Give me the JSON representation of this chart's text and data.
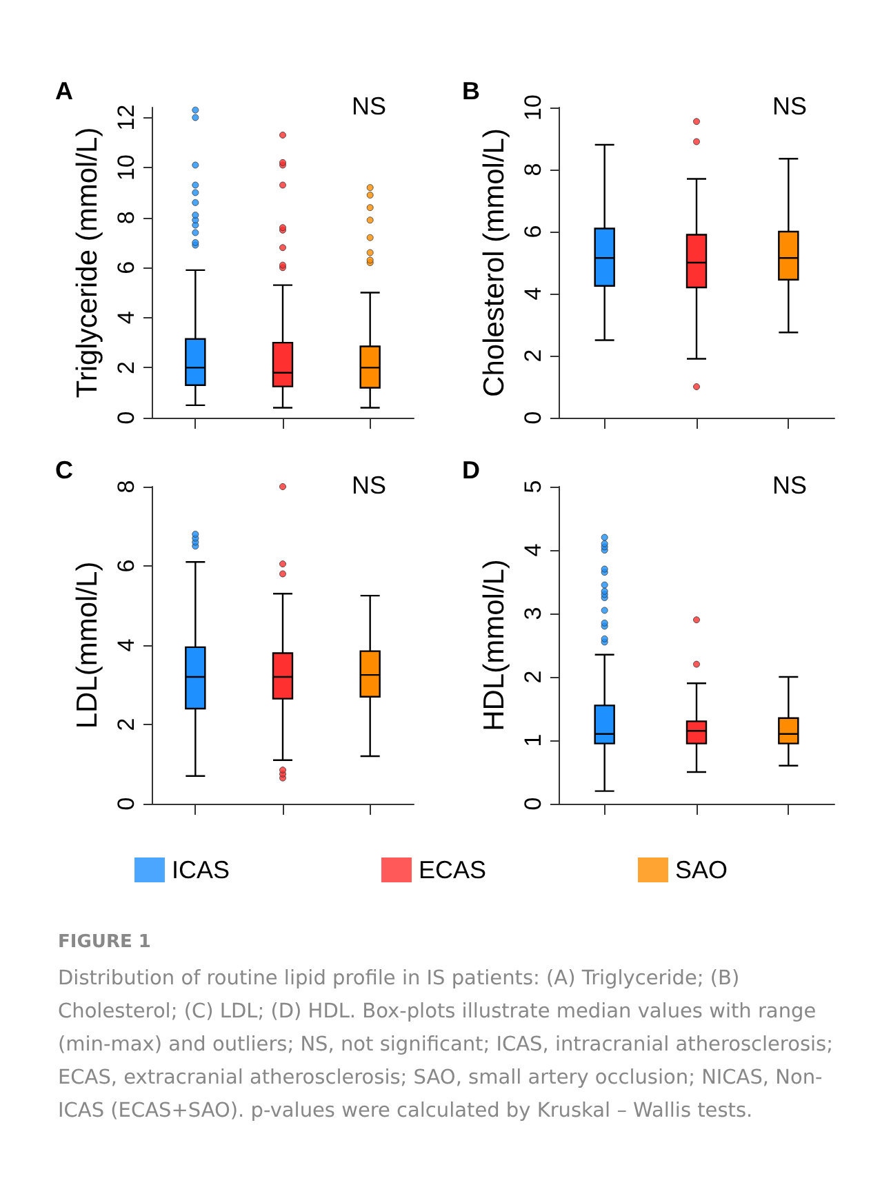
{
  "chart_data": [
    {
      "type": "box",
      "title": "A",
      "ylabel": "Triglyceride (mmol/L)",
      "categories": [
        null,
        null,
        null
      ],
      "ylim": [
        0,
        12.4
      ],
      "yticks": [
        0,
        2,
        4,
        6,
        8,
        10,
        12
      ],
      "tick_labels": "y",
      "annotations": [
        "NS"
      ],
      "series": [
        {
          "color": "#1e90ff",
          "boxes": [
            {
              "low": 0.5,
              "q1": 1.3,
              "median": 2.0,
              "q3": 3.15,
              "high": 5.9,
              "outliers": [
                6.9,
                7.0,
                7.4,
                7.7,
                7.9,
                8.1,
                8.6,
                9.0,
                9.3,
                10.1,
                12.0,
                12.3
              ]
            },
            null,
            null
          ]
        },
        {
          "color": "#ff3030",
          "boxes": [
            null,
            {
              "low": 0.4,
              "q1": 1.25,
              "median": 1.8,
              "q3": 3.0,
              "high": 5.3,
              "outliers": [
                6.0,
                6.1,
                6.8,
                7.5,
                7.6,
                9.3,
                10.1,
                10.2,
                11.3
              ]
            },
            null
          ]
        },
        {
          "color": "#ff8c00",
          "boxes": [
            null,
            null,
            {
              "low": 0.4,
              "q1": 1.2,
              "median": 2.0,
              "q3": 2.85,
              "high": 5.0,
              "outliers": [
                6.2,
                6.3,
                6.6,
                7.2,
                7.9,
                8.4,
                8.9,
                9.2
              ]
            }
          ]
        }
      ]
    },
    {
      "type": "box",
      "title": "B",
      "ylabel": "Cholesterol (mmol/L)",
      "categories": [
        null,
        null,
        null
      ],
      "ylim": [
        0,
        10
      ],
      "yticks": [
        0,
        2,
        4,
        6,
        8,
        10
      ],
      "tick_labels": "y",
      "annotations": [
        "NS"
      ],
      "series": [
        {
          "color": "#1e90ff",
          "boxes": [
            {
              "low": 2.5,
              "q1": 4.25,
              "median": 5.15,
              "q3": 6.1,
              "high": 8.8
            },
            null,
            null
          ]
        },
        {
          "color": "#ff3030",
          "boxes": [
            null,
            {
              "low": 1.9,
              "q1": 4.2,
              "median": 5.0,
              "q3": 5.9,
              "high": 7.7,
              "outliers": [
                1.0,
                8.9,
                9.55
              ]
            },
            null
          ]
        },
        {
          "color": "#ff8c00",
          "boxes": [
            null,
            null,
            {
              "low": 2.75,
              "q1": 4.45,
              "median": 5.15,
              "q3": 6.0,
              "high": 8.35
            }
          ]
        }
      ]
    },
    {
      "type": "box",
      "title": "C",
      "ylabel": "LDL(mmol/L)",
      "categories": [
        null,
        null,
        null
      ],
      "ylim": [
        0,
        8
      ],
      "yticks": [
        0,
        2,
        4,
        6,
        8
      ],
      "tick_labels": "y",
      "annotations": [
        "NS"
      ],
      "series": [
        {
          "color": "#1e90ff",
          "boxes": [
            {
              "low": 0.7,
              "q1": 2.4,
              "median": 3.2,
              "q3": 3.95,
              "high": 6.1,
              "outliers": [
                6.5,
                6.6,
                6.7,
                6.8
              ]
            },
            null,
            null
          ]
        },
        {
          "color": "#ff3030",
          "boxes": [
            null,
            {
              "low": 1.1,
              "q1": 2.65,
              "median": 3.2,
              "q3": 3.8,
              "high": 5.3,
              "outliers": [
                0.65,
                0.75,
                0.85,
                5.8,
                6.05,
                8.0
              ]
            },
            null
          ]
        },
        {
          "color": "#ff8c00",
          "boxes": [
            null,
            null,
            {
              "low": 1.2,
              "q1": 2.7,
              "median": 3.25,
              "q3": 3.85,
              "high": 5.25
            }
          ]
        }
      ]
    },
    {
      "type": "box",
      "title": "D",
      "ylabel": "HDL(mmol/L)",
      "categories": [
        null,
        null,
        null
      ],
      "ylim": [
        0,
        5
      ],
      "yticks": [
        0,
        1,
        2,
        3,
        4,
        5
      ],
      "tick_labels": "y",
      "legend": "bottom",
      "annotations": [
        "NS",
        "FIGURE 1",
        "Distribution of routine lipid profile in IS patients: (A) Triglyceride; (B) Cholesterol; (C) LDL; (D) HDL. Box-plots illustrate median values with range (min-max) and outliers; NS, not significant; ICAS, intracranial atherosclerosis; ECAS, extracranial atherosclerosis; SAO, small artery occlusion; NICAS, Non-ICAS (ECAS+SAO). p-values were calculated by Kruskal – Wallis tests."
      ],
      "series": [
        {
          "name": "ICAS",
          "color": "#1e90ff",
          "boxes": [
            {
              "low": 0.2,
              "q1": 0.95,
              "median": 1.1,
              "q3": 1.55,
              "high": 2.35,
              "outliers": [
                2.55,
                2.6,
                2.8,
                2.85,
                3.05,
                3.25,
                3.3,
                3.35,
                3.45,
                3.65,
                3.7,
                4.0,
                4.05,
                4.1,
                4.2
              ]
            },
            null,
            null
          ]
        },
        {
          "name": "ECAS",
          "color": "#ff3030",
          "boxes": [
            null,
            {
              "low": 0.5,
              "q1": 0.95,
              "median": 1.15,
              "q3": 1.3,
              "high": 1.9,
              "outliers": [
                2.2,
                2.9
              ]
            },
            null
          ]
        },
        {
          "name": "SAO",
          "color": "#ff8c00",
          "boxes": [
            null,
            null,
            {
              "low": 0.6,
              "q1": 0.95,
              "median": 1.1,
              "q3": 1.35,
              "high": 2.0
            }
          ]
        }
      ]
    }
  ]
}
